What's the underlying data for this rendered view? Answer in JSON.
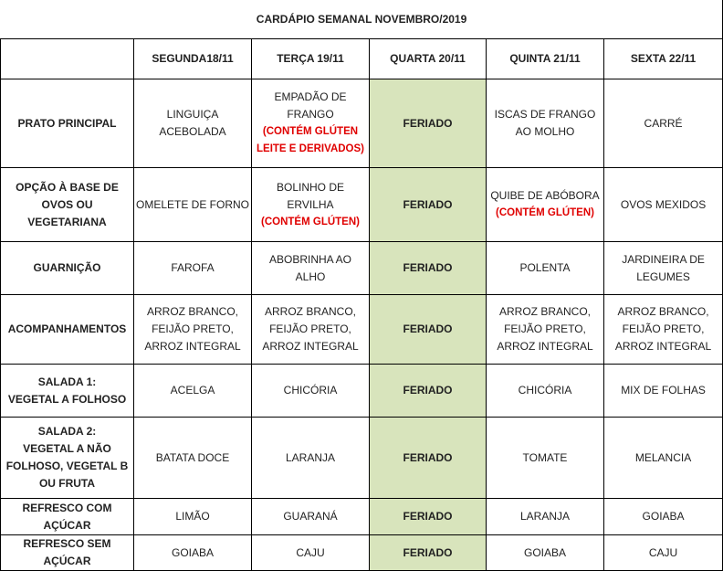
{
  "title": "CARDÁPIO SEMANAL NOVEMBRO/2019",
  "days": [
    "SEGUNDA18/11",
    "TERÇA 19/11",
    "QUARTA 20/11",
    "QUINTA 21/11",
    "SEXTA 22/11"
  ],
  "holiday_column": 2,
  "colors": {
    "holiday_fill": "#d8e4bc",
    "allergen_note": "#e00000"
  },
  "rows": [
    {
      "label": [
        "PRATO PRINCIPAL"
      ],
      "cells": [
        {
          "lines": [
            "LINGUIÇA",
            "ACEBOLADA"
          ]
        },
        {
          "lines": [
            "EMPADÃO DE",
            "FRANGO"
          ],
          "note": [
            "(CONTÉM GLÚTEN",
            "LEITE E DERIVADOS)"
          ]
        },
        {
          "lines": [
            "FERIADO"
          ]
        },
        {
          "lines": [
            "ISCAS DE FRANGO",
            "AO MOLHO"
          ]
        },
        {
          "lines": [
            "CARRÉ"
          ]
        }
      ]
    },
    {
      "label": [
        "OPÇÃO À BASE DE",
        "OVOS OU",
        "VEGETARIANA"
      ],
      "cells": [
        {
          "lines": [
            "OMELETE DE FORNO"
          ]
        },
        {
          "lines": [
            "BOLINHO DE",
            "ERVILHA"
          ],
          "note": [
            "(CONTÉM GLÚTEN)"
          ]
        },
        {
          "lines": [
            "FERIADO"
          ]
        },
        {
          "lines": [
            "QUIBE DE ABÓBORA"
          ],
          "note": [
            "(CONTÉM GLÚTEN)"
          ]
        },
        {
          "lines": [
            "OVOS MEXIDOS"
          ]
        }
      ]
    },
    {
      "label": [
        "GUARNIÇÃO"
      ],
      "cells": [
        {
          "lines": [
            "FAROFA"
          ]
        },
        {
          "lines": [
            "ABOBRINHA AO",
            "ALHO"
          ]
        },
        {
          "lines": [
            "FERIADO"
          ]
        },
        {
          "lines": [
            "POLENTA"
          ]
        },
        {
          "lines": [
            "JARDINEIRA DE",
            "LEGUMES"
          ]
        }
      ]
    },
    {
      "label": [
        "ACOMPANHAMENTOS"
      ],
      "cells": [
        {
          "lines": [
            "ARROZ BRANCO,",
            "FEIJÃO PRETO,",
            "ARROZ INTEGRAL"
          ]
        },
        {
          "lines": [
            "ARROZ BRANCO,",
            "FEIJÃO PRETO,",
            "ARROZ INTEGRAL"
          ]
        },
        {
          "lines": [
            "FERIADO"
          ]
        },
        {
          "lines": [
            "ARROZ BRANCO,",
            "FEIJÃO PRETO,",
            "ARROZ INTEGRAL"
          ]
        },
        {
          "lines": [
            "ARROZ BRANCO,",
            "FEIJÃO PRETO,",
            "ARROZ INTEGRAL"
          ]
        }
      ]
    },
    {
      "label": [
        "SALADA 1:",
        "VEGETAL A FOLHOSO"
      ],
      "cells": [
        {
          "lines": [
            "ACELGA"
          ]
        },
        {
          "lines": [
            "CHICÓRIA"
          ]
        },
        {
          "lines": [
            "FERIADO"
          ]
        },
        {
          "lines": [
            "CHICÓRIA"
          ]
        },
        {
          "lines": [
            "MIX DE FOLHAS"
          ]
        }
      ]
    },
    {
      "label": [
        "SALADA 2:",
        "VEGETAL A NÃO",
        "FOLHOSO, VEGETAL B",
        "OU FRUTA"
      ],
      "cells": [
        {
          "lines": [
            "BATATA DOCE"
          ]
        },
        {
          "lines": [
            "LARANJA"
          ]
        },
        {
          "lines": [
            "FERIADO"
          ]
        },
        {
          "lines": [
            "TOMATE"
          ]
        },
        {
          "lines": [
            "MELANCIA"
          ]
        }
      ]
    },
    {
      "label": [
        "REFRESCO COM",
        "AÇÚCAR"
      ],
      "cells": [
        {
          "lines": [
            "LIMÃO"
          ]
        },
        {
          "lines": [
            "GUARANÁ"
          ]
        },
        {
          "lines": [
            "FERIADO"
          ]
        },
        {
          "lines": [
            "LARANJA"
          ]
        },
        {
          "lines": [
            "GOIABA"
          ]
        }
      ]
    },
    {
      "label": [
        "REFRESCO SEM",
        "AÇÚCAR"
      ],
      "cells": [
        {
          "lines": [
            "GOIABA"
          ]
        },
        {
          "lines": [
            "CAJU"
          ]
        },
        {
          "lines": [
            "FERIADO"
          ]
        },
        {
          "lines": [
            "GOIABA"
          ]
        },
        {
          "lines": [
            "CAJU"
          ]
        }
      ]
    }
  ]
}
